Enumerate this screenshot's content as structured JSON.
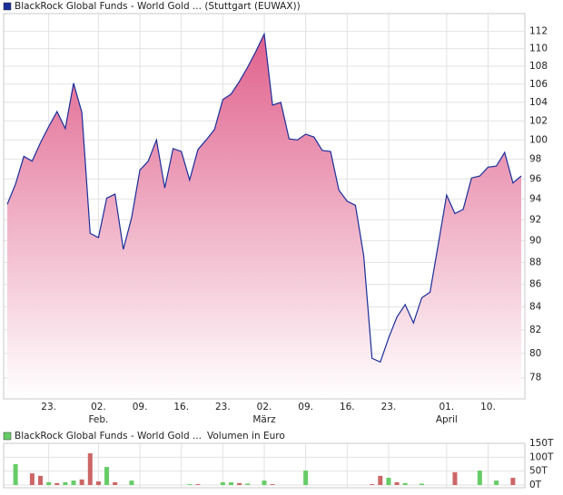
{
  "chart_data": [
    {
      "type": "area",
      "categories": [
        null,
        null,
        null,
        null,
        null,
        "23.",
        null,
        null,
        null,
        null,
        null,
        "02.",
        null,
        null,
        null,
        null,
        "09.",
        null,
        null,
        null,
        null,
        "16.",
        null,
        null,
        null,
        null,
        "23.",
        null,
        null,
        null,
        null,
        "02.",
        null,
        null,
        null,
        null,
        "09.",
        null,
        null,
        null,
        null,
        "16.",
        null,
        null,
        null,
        null,
        "23.",
        null,
        null,
        null,
        null,
        null,
        null,
        "01.",
        null,
        null,
        null,
        null,
        "10.",
        null,
        null,
        null,
        null
      ],
      "category_months": [
        null,
        null,
        null,
        null,
        null,
        null,
        null,
        null,
        null,
        null,
        null,
        "Feb.",
        null,
        null,
        null,
        null,
        null,
        null,
        null,
        null,
        null,
        null,
        null,
        null,
        null,
        null,
        null,
        null,
        null,
        null,
        null,
        "März",
        null,
        null,
        null,
        null,
        null,
        null,
        null,
        null,
        null,
        null,
        null,
        null,
        null,
        null,
        null,
        null,
        null,
        null,
        null,
        null,
        null,
        "April",
        null,
        null,
        null,
        null,
        null,
        null,
        null,
        null,
        null
      ],
      "series": [
        {
          "name": "BlackRock Global Funds - World Gold ... (Stuttgart (EUWAX))",
          "color": "#1a2e99",
          "fill": "#e0608c",
          "values": [
            93.5,
            95.5,
            98.3,
            97.8,
            99.7,
            101.4,
            103.0,
            101.2,
            106.1,
            102.9,
            90.7,
            90.3,
            94.1,
            94.5,
            89.2,
            92.2,
            96.9,
            97.8,
            100.0,
            95.1,
            99.1,
            98.8,
            95.9,
            99.0,
            100.0,
            101.1,
            104.3,
            104.9,
            106.3,
            107.9,
            109.7,
            111.7,
            103.7,
            104.0,
            100.1,
            100.0,
            100.6,
            100.3,
            98.9,
            98.8,
            94.9,
            93.8,
            93.4,
            88.6,
            79.6,
            79.3,
            81.3,
            83.1,
            84.2,
            82.6,
            84.8,
            85.3,
            89.7,
            94.4,
            92.6,
            93.0,
            96.1,
            96.3,
            97.2,
            97.3,
            98.7,
            95.6,
            96.3
          ]
        }
      ],
      "ylim": [
        76.3,
        114.1
      ],
      "yticks": [
        78,
        80,
        82,
        84,
        86,
        88,
        90,
        92,
        94,
        96,
        98,
        100,
        102,
        104,
        106,
        108,
        110,
        112
      ],
      "log_scale": true,
      "grid": true,
      "legend": "top-left"
    },
    {
      "type": "bar",
      "series": [
        {
          "name": "BlackRock Global Funds - World Gold ...",
          "color": "#66cc66",
          "values": [
            null,
            75000,
            null,
            42000,
            33000,
            10000,
            7000,
            10000,
            16000,
            20000,
            114000,
            13000,
            65000,
            10000,
            null,
            16000,
            null,
            null,
            null,
            null,
            null,
            null,
            3000,
            3000,
            null,
            null,
            10000,
            10000,
            7000,
            5000,
            null,
            16000,
            3000,
            null,
            null,
            null,
            52000,
            null,
            null,
            null,
            null,
            null,
            null,
            null,
            3000,
            33000,
            26000,
            10000,
            7000,
            null,
            5000,
            null,
            null,
            null,
            46000,
            null,
            null,
            52000,
            null,
            16000,
            null,
            26000,
            null
          ],
          "colors": [
            null,
            "#66cc66",
            null,
            "#cc6666",
            "#cc6666",
            "#66cc66",
            "#cc6666",
            "#66cc66",
            "#66cc66",
            "#cc6666",
            "#cc6666",
            "#cc6666",
            "#66cc66",
            "#cc6666",
            null,
            "#66cc66",
            null,
            null,
            null,
            null,
            null,
            null,
            "#66cc66",
            "#cc6666",
            null,
            null,
            "#66cc66",
            "#66cc66",
            "#cc6666",
            "#66cc66",
            null,
            "#66cc66",
            "#cc6666",
            null,
            null,
            null,
            "#66cc66",
            null,
            null,
            null,
            null,
            null,
            null,
            null,
            "#cc6666",
            "#cc6666",
            "#66cc66",
            "#cc6666",
            "#66cc66",
            null,
            "#66cc66",
            null,
            null,
            null,
            "#cc6666",
            null,
            null,
            "#66cc66",
            null,
            "#66cc66",
            null,
            "#cc6666",
            null
          ]
        }
      ],
      "ylabel": "Volumen in Euro",
      "ylim": [
        0,
        150000
      ],
      "yticks": [
        {
          "value": 0,
          "label": "0T"
        },
        {
          "value": 50000,
          "label": "50T"
        },
        {
          "value": 100000,
          "label": "100T"
        },
        {
          "value": 150000,
          "label": "150T"
        }
      ],
      "grid": true
    }
  ]
}
